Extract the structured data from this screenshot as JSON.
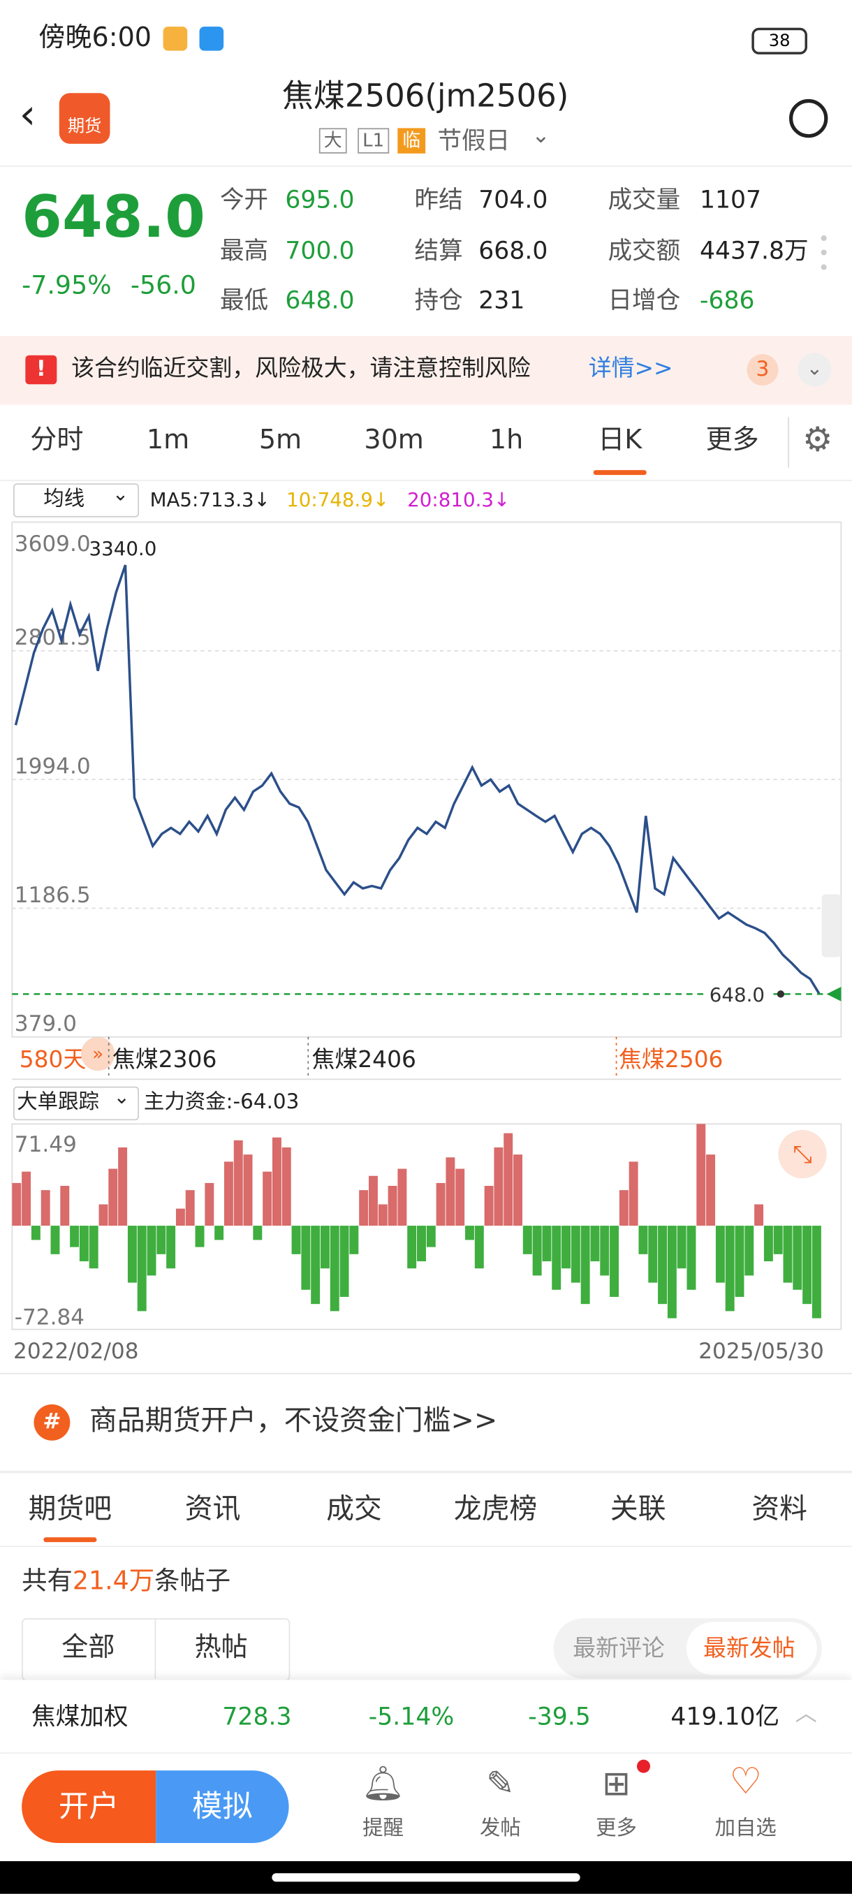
{
  "status_bar": {
    "time": "傍晚6:00",
    "battery": "38"
  },
  "header": {
    "logo": "期货",
    "title": "焦煤2506(jm2506)",
    "tags": [
      "大",
      "L1",
      "临"
    ],
    "session": "节假日"
  },
  "quote": {
    "price": "648.0",
    "change_pct": "-7.95%",
    "change": "-56.0",
    "fields": [
      {
        "label": "今开",
        "value": "695.0"
      },
      {
        "label": "昨结",
        "value": "704.0"
      },
      {
        "label": "成交量",
        "value": "1107"
      },
      {
        "label": "最高",
        "value": "700.0"
      },
      {
        "label": "结算",
        "value": "668.0"
      },
      {
        "label": "成交额",
        "value": "4437.8万"
      },
      {
        "label": "最低",
        "value": "648.0"
      },
      {
        "label": "持仓",
        "value": "231"
      },
      {
        "label": "日增仓",
        "value": "-686"
      }
    ]
  },
  "alert": {
    "icon": "!",
    "text": "该合约临近交割，风险极大，请注意控制风险",
    "link": "详情>>",
    "count": "3"
  },
  "periods": [
    "分时",
    "1m",
    "5m",
    "30m",
    "1h",
    "日K",
    "更多"
  ],
  "indicator": {
    "name": "均线",
    "ma5": "MA5:713.3↓",
    "ma10": "10:748.9↓",
    "ma20": "20:810.3↓"
  },
  "chart_data": [
    {
      "type": "line",
      "color": "#2b4f8a",
      "ylim": [
        379.0,
        3609.0
      ],
      "yticks": [
        {
          "value": 3609.0,
          "label": "3609.0"
        },
        {
          "value": 2801.5,
          "label": "2801.5"
        },
        {
          "value": 1994.0,
          "label": "1994.0"
        },
        {
          "value": 1186.5,
          "label": "1186.5"
        },
        {
          "value": 379.0,
          "label": "379.0"
        }
      ],
      "grid": true,
      "max_label": "3340.0",
      "days": "580天",
      "contracts": [
        "焦煤2306",
        "焦煤2406",
        "焦煤2506"
      ],
      "values": [
        2335,
        2563,
        2790,
        2942,
        3055,
        2866,
        3093,
        2904,
        3018,
        2676,
        2942,
        3169,
        3340,
        1880,
        1729,
        1577,
        1653,
        1691,
        1653,
        1729,
        1668,
        1766,
        1653,
        1804,
        1880,
        1804,
        1918,
        1956,
        2032,
        1918,
        1842,
        1819,
        1729,
        1577,
        1425,
        1349,
        1274,
        1349,
        1311,
        1326,
        1311,
        1425,
        1501,
        1615,
        1691,
        1653,
        1729,
        1691,
        1842,
        1956,
        2070,
        1956,
        1994,
        1918,
        1956,
        1842,
        1804,
        1766,
        1729,
        1766,
        1653,
        1539,
        1653,
        1691,
        1653,
        1577,
        1463,
        1311,
        1160,
        1766,
        1311,
        1274,
        1501,
        1425,
        1349,
        1274,
        1198,
        1122,
        1160,
        1122,
        1084,
        1061,
        1031,
        970,
        894,
        841,
        781,
        743,
        648
      ]
    },
    {
      "type": "bar",
      "title": "大单跟踪",
      "subtitle": "主力资金:-64.03",
      "ylim": [
        -72.84,
        71.49
      ],
      "yticks": [
        71.49,
        -72.84
      ],
      "colors": {
        "positive": "#d96b6b",
        "negative": "#3fae3f"
      },
      "values": [
        30,
        38,
        -10,
        25,
        -20,
        28,
        -15,
        -25,
        -30,
        15,
        40,
        55,
        -40,
        -60,
        -35,
        -20,
        -30,
        12,
        25,
        -15,
        30,
        -10,
        45,
        60,
        50,
        -10,
        38,
        62,
        55,
        -20,
        -45,
        -55,
        -30,
        -60,
        -50,
        -20,
        25,
        35,
        15,
        28,
        40,
        -30,
        -25,
        -15,
        30,
        48,
        40,
        -10,
        -30,
        28,
        55,
        65,
        50,
        -20,
        -35,
        -25,
        -45,
        -30,
        -40,
        -55,
        -25,
        -35,
        -50,
        25,
        45,
        -20,
        -40,
        -55,
        -65,
        -30,
        -45,
        71.49,
        50,
        -40,
        -60,
        -50,
        -35,
        15,
        -25,
        -20,
        -40,
        -45,
        -55,
        -65
      ],
      "x_start": "2022/02/08",
      "x_end": "2025/05/30"
    }
  ],
  "ad": {
    "icon": "#",
    "text": "商品期货开户，不设资金门槛>>"
  },
  "tabs": [
    "期货吧",
    "资讯",
    "成交",
    "龙虎榜",
    "关联",
    "资料"
  ],
  "posts": {
    "prefix": "共有",
    "count": "21.4万",
    "suffix": "条帖子",
    "filters": [
      "全部",
      "热帖"
    ],
    "sorts": [
      "最新评论",
      "最新发帖"
    ]
  },
  "ticker": {
    "name": "焦煤加权",
    "price": "728.3",
    "change_pct": "-5.14%",
    "change": "-39.5",
    "amount": "419.10亿"
  },
  "bottom_nav": {
    "open": "开户",
    "sim": "模拟",
    "items": [
      "提醒",
      "发帖",
      "更多",
      "加自选"
    ]
  }
}
